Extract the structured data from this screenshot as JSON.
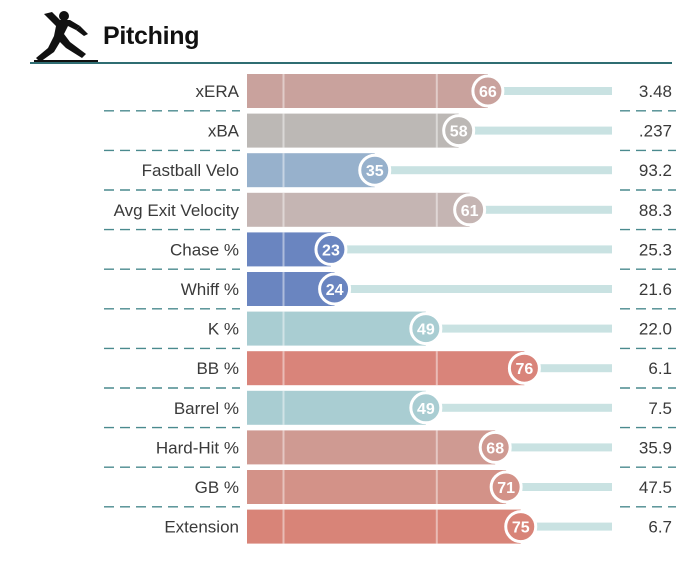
{
  "header": {
    "title": "Pitching",
    "icon": "pitcher-icon"
  },
  "colors": {
    "header_line": "#2f6d72",
    "divider": "#4a8a8e",
    "track": "#c9e2e2",
    "label_text": "#3a3a3a",
    "value_text": "#3a3a3a"
  },
  "chart_data": {
    "type": "bar",
    "orientation": "horizontal",
    "title": "Pitching",
    "xlim": [
      0,
      100
    ],
    "grid": true,
    "rows": [
      {
        "label": "xERA",
        "percentile": 66,
        "value": "3.48",
        "color": "#c9a29d"
      },
      {
        "label": "xBA",
        "percentile": 58,
        "value": ".237",
        "color": "#bcb8b5"
      },
      {
        "label": "Fastball Velo",
        "percentile": 35,
        "value": "93.2",
        "color": "#97b1cc"
      },
      {
        "label": "Avg Exit Velocity",
        "percentile": 61,
        "value": "88.3",
        "color": "#c5b5b3"
      },
      {
        "label": "Chase %",
        "percentile": 23,
        "value": "25.3",
        "color": "#6a85c0"
      },
      {
        "label": "Whiff %",
        "percentile": 24,
        "value": "21.6",
        "color": "#6a85c0"
      },
      {
        "label": "K %",
        "percentile": 49,
        "value": "22.0",
        "color": "#a9cdd2"
      },
      {
        "label": "BB %",
        "percentile": 76,
        "value": "6.1",
        "color": "#d9847a"
      },
      {
        "label": "Barrel %",
        "percentile": 49,
        "value": "7.5",
        "color": "#a9cdd2"
      },
      {
        "label": "Hard-Hit %",
        "percentile": 68,
        "value": "35.9",
        "color": "#cf9a92"
      },
      {
        "label": "GB %",
        "percentile": 71,
        "value": "47.5",
        "color": "#d39288"
      },
      {
        "label": "Extension",
        "percentile": 75,
        "value": "6.7",
        "color": "#d88478"
      }
    ]
  }
}
